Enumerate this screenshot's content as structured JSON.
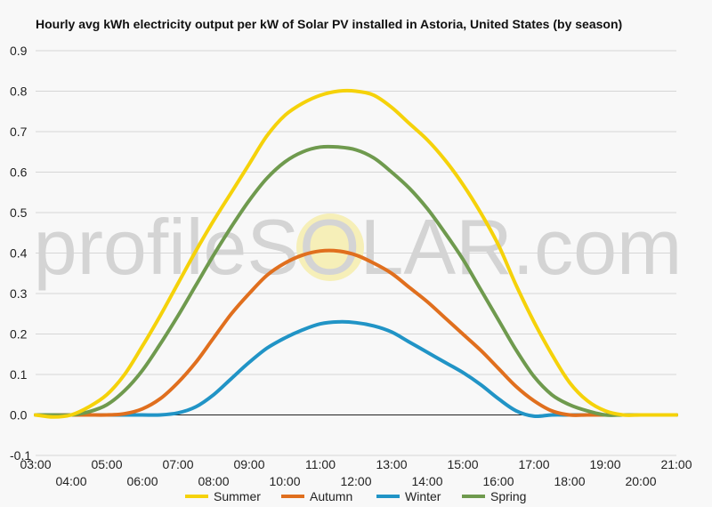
{
  "chart_data": {
    "type": "line",
    "title": "Hourly avg kWh electricity output per kW of Solar PV installed in Astoria, United States (by season)",
    "xlabel": "",
    "ylabel": "",
    "ylim": [
      -0.1,
      0.9
    ],
    "yticks": [
      "-0.1",
      "0.0",
      "0.1",
      "0.2",
      "0.3",
      "0.4",
      "0.5",
      "0.6",
      "0.7",
      "0.8",
      "0.9"
    ],
    "xlim": [
      3,
      21
    ],
    "xticks": [
      "03:00",
      "04:00",
      "05:00",
      "06:00",
      "07:00",
      "08:00",
      "09:00",
      "10:00",
      "11:00",
      "12:00",
      "13:00",
      "14:00",
      "15:00",
      "16:00",
      "17:00",
      "18:00",
      "19:00",
      "20:00",
      "21:00"
    ],
    "grid": true,
    "legend_position": "bottom",
    "watermark": "profileSOLAR.com",
    "x": [
      3.0,
      3.5,
      4.0,
      4.5,
      5.0,
      5.5,
      6.0,
      6.5,
      7.0,
      7.5,
      8.0,
      8.5,
      9.0,
      9.5,
      10.0,
      10.5,
      11.0,
      11.5,
      12.0,
      12.5,
      13.0,
      13.5,
      14.0,
      14.5,
      15.0,
      15.5,
      16.0,
      16.5,
      17.0,
      17.5,
      18.0,
      18.5,
      19.0,
      19.5,
      20.0,
      20.5,
      21.0
    ],
    "series": [
      {
        "name": "Summer",
        "color": "#f5d20a",
        "values": [
          0.0,
          -0.005,
          0.0,
          0.02,
          0.05,
          0.1,
          0.17,
          0.245,
          0.325,
          0.405,
          0.48,
          0.55,
          0.62,
          0.69,
          0.74,
          0.77,
          0.79,
          0.8,
          0.8,
          0.79,
          0.76,
          0.72,
          0.68,
          0.63,
          0.57,
          0.5,
          0.42,
          0.32,
          0.23,
          0.15,
          0.08,
          0.035,
          0.01,
          0.0,
          0.0,
          0.0,
          0.0
        ]
      },
      {
        "name": "Autumn",
        "color": "#e06f1e",
        "values": [
          0.0,
          0.0,
          0.0,
          0.0,
          0.0,
          0.003,
          0.015,
          0.04,
          0.08,
          0.13,
          0.19,
          0.25,
          0.3,
          0.345,
          0.375,
          0.395,
          0.405,
          0.405,
          0.395,
          0.375,
          0.35,
          0.315,
          0.28,
          0.24,
          0.2,
          0.16,
          0.115,
          0.07,
          0.035,
          0.01,
          0.0,
          0.0,
          0.0,
          0.0,
          0.0,
          0.0,
          0.0
        ]
      },
      {
        "name": "Winter",
        "color": "#2194c6",
        "values": [
          0.0,
          0.0,
          0.0,
          0.0,
          0.0,
          0.0,
          0.0,
          0.0,
          0.005,
          0.02,
          0.05,
          0.09,
          0.13,
          0.165,
          0.19,
          0.21,
          0.225,
          0.23,
          0.228,
          0.22,
          0.205,
          0.18,
          0.155,
          0.13,
          0.105,
          0.075,
          0.04,
          0.01,
          -0.003,
          0.0,
          0.0,
          0.0,
          0.0,
          0.0,
          0.0,
          0.0,
          0.0
        ]
      },
      {
        "name": "Spring",
        "color": "#6f9a4e",
        "values": [
          0.0,
          0.0,
          0.0,
          0.008,
          0.025,
          0.06,
          0.11,
          0.175,
          0.245,
          0.32,
          0.395,
          0.465,
          0.53,
          0.585,
          0.625,
          0.65,
          0.662,
          0.662,
          0.655,
          0.635,
          0.6,
          0.56,
          0.51,
          0.45,
          0.385,
          0.31,
          0.235,
          0.16,
          0.095,
          0.05,
          0.025,
          0.01,
          0.0,
          0.0,
          0.0,
          0.0,
          0.0
        ]
      }
    ]
  }
}
